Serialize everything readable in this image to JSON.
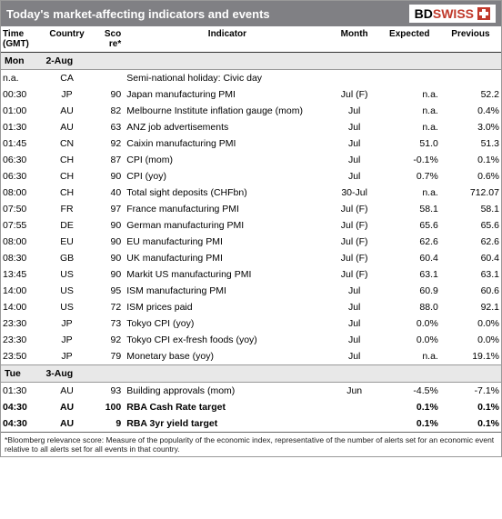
{
  "title": "Today's market-affecting indicators and events",
  "logo": {
    "bd": "BD",
    "swiss": "SWISS"
  },
  "cols": {
    "time": "Time (GMT)",
    "country": "Country",
    "score": "Sco re*",
    "indicator": "Indicator",
    "month": "Month",
    "expected": "Expected",
    "previous": "Previous"
  },
  "footnote": "*Bloomberg relevance score: Measure of the popularity of the economic index, representative of the number of alerts set for an economic event relative to all alerts set for all events in that country.",
  "colors": {
    "header_bg": "#808084",
    "header_fg": "#ffffff",
    "dayrow_bg": "#e8e8e8",
    "border": "#999999",
    "logo_red": "#c0392b"
  },
  "days": [
    {
      "dow": "Mon",
      "date": "2-Aug",
      "rows": [
        {
          "time": "n.a.",
          "cty": "CA",
          "sc": "",
          "ind": "Semi-national holiday: Civic day",
          "mon": "",
          "exp": "",
          "prev": "",
          "b": false
        },
        {
          "time": "00:30",
          "cty": "JP",
          "sc": "90",
          "ind": "Japan manufacturing PMI",
          "mon": "Jul (F)",
          "exp": "n.a.",
          "prev": "52.2",
          "b": false
        },
        {
          "time": "01:00",
          "cty": "AU",
          "sc": "82",
          "ind": "Melbourne Institute inflation gauge (mom)",
          "mon": "Jul",
          "exp": "n.a.",
          "prev": "0.4%",
          "b": false
        },
        {
          "time": "01:30",
          "cty": "AU",
          "sc": "63",
          "ind": "ANZ job advertisements",
          "mon": "Jul",
          "exp": "n.a.",
          "prev": "3.0%",
          "b": false
        },
        {
          "time": "01:45",
          "cty": "CN",
          "sc": "92",
          "ind": "Caixin manufacturing PMI",
          "mon": "Jul",
          "exp": "51.0",
          "prev": "51.3",
          "b": false
        },
        {
          "time": "06:30",
          "cty": "CH",
          "sc": "87",
          "ind": "CPI (mom)",
          "mon": "Jul",
          "exp": "-0.1%",
          "prev": "0.1%",
          "b": false
        },
        {
          "time": "06:30",
          "cty": "CH",
          "sc": "90",
          "ind": "CPI (yoy)",
          "mon": "Jul",
          "exp": "0.7%",
          "prev": "0.6%",
          "b": false
        },
        {
          "time": "08:00",
          "cty": "CH",
          "sc": "40",
          "ind": "Total sight deposits (CHFbn)",
          "mon": "30-Jul",
          "exp": "n.a.",
          "prev": "712.07",
          "b": false
        },
        {
          "time": "07:50",
          "cty": "FR",
          "sc": "97",
          "ind": "France manufacturing PMI",
          "mon": "Jul (F)",
          "exp": "58.1",
          "prev": "58.1",
          "b": false
        },
        {
          "time": "07:55",
          "cty": "DE",
          "sc": "90",
          "ind": "German manufacturing PMI",
          "mon": "Jul (F)",
          "exp": "65.6",
          "prev": "65.6",
          "b": false
        },
        {
          "time": "08:00",
          "cty": "EU",
          "sc": "90",
          "ind": "EU manufacturing PMI",
          "mon": "Jul (F)",
          "exp": "62.6",
          "prev": "62.6",
          "b": false
        },
        {
          "time": "08:30",
          "cty": "GB",
          "sc": "90",
          "ind": "UK manufacturing PMI",
          "mon": "Jul (F)",
          "exp": "60.4",
          "prev": "60.4",
          "b": false
        },
        {
          "time": "13:45",
          "cty": "US",
          "sc": "90",
          "ind": "Markit US manufacturing PMI",
          "mon": "Jul (F)",
          "exp": "63.1",
          "prev": "63.1",
          "b": false
        },
        {
          "time": "14:00",
          "cty": "US",
          "sc": "95",
          "ind": "ISM manufacturing PMI",
          "mon": "Jul",
          "exp": "60.9",
          "prev": "60.6",
          "b": false
        },
        {
          "time": "14:00",
          "cty": "US",
          "sc": "72",
          "ind": "ISM prices paid",
          "mon": "Jul",
          "exp": "88.0",
          "prev": "92.1",
          "b": false
        },
        {
          "time": "23:30",
          "cty": "JP",
          "sc": "73",
          "ind": "Tokyo CPI (yoy)",
          "mon": "Jul",
          "exp": "0.0%",
          "prev": "0.0%",
          "b": false
        },
        {
          "time": "23:30",
          "cty": "JP",
          "sc": "92",
          "ind": "Tokyo CPI ex-fresh foods (yoy)",
          "mon": "Jul",
          "exp": "0.0%",
          "prev": "0.0%",
          "b": false
        },
        {
          "time": "23:50",
          "cty": "JP",
          "sc": "79",
          "ind": "Monetary base (yoy)",
          "mon": "Jul",
          "exp": "n.a.",
          "prev": "19.1%",
          "b": false
        }
      ]
    },
    {
      "dow": "Tue",
      "date": "3-Aug",
      "rows": [
        {
          "time": "01:30",
          "cty": "AU",
          "sc": "93",
          "ind": "Building approvals (mom)",
          "mon": "Jun",
          "exp": "-4.5%",
          "prev": "-7.1%",
          "b": false
        },
        {
          "time": "04:30",
          "cty": "AU",
          "sc": "100",
          "ind": "RBA Cash Rate target",
          "mon": "",
          "exp": "0.1%",
          "prev": "0.1%",
          "b": true
        },
        {
          "time": "04:30",
          "cty": "AU",
          "sc": "9",
          "ind": "RBA 3yr yield target",
          "mon": "",
          "exp": "0.1%",
          "prev": "0.1%",
          "b": true
        }
      ]
    }
  ]
}
